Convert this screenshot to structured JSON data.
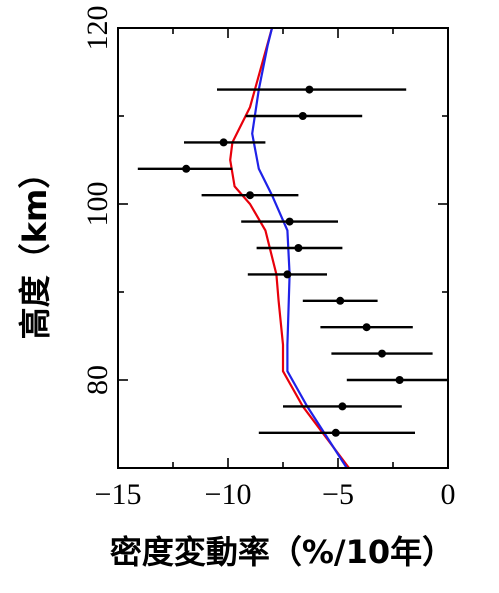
{
  "chart_data": {
    "type": "scatter",
    "xlabel": "密度変動率（%/10年）",
    "ylabel": "高度（km）",
    "xlim": [
      -15,
      0
    ],
    "ylim": [
      70,
      120
    ],
    "xticks": [
      -15,
      -10,
      -5,
      0
    ],
    "xtick_labels": [
      "−15",
      "−10",
      "−5",
      "0"
    ],
    "yticks": [
      80,
      100,
      120
    ],
    "ytick_labels": [
      "80",
      "100",
      "120"
    ],
    "grid": false,
    "points": [
      {
        "y": 113,
        "x": -6.3,
        "xmin": -10.5,
        "xmax": -1.9
      },
      {
        "y": 110,
        "x": -6.6,
        "xmin": -9.2,
        "xmax": -3.9
      },
      {
        "y": 107,
        "x": -10.2,
        "xmin": -12.0,
        "xmax": -8.3
      },
      {
        "y": 104,
        "x": -11.9,
        "xmin": -14.1,
        "xmax": -9.8
      },
      {
        "y": 101,
        "x": -9.0,
        "xmin": -11.2,
        "xmax": -6.8
      },
      {
        "y": 98,
        "x": -7.2,
        "xmin": -9.4,
        "xmax": -5.0
      },
      {
        "y": 95,
        "x": -6.8,
        "xmin": -8.7,
        "xmax": -4.8
      },
      {
        "y": 92,
        "x": -7.3,
        "xmin": -9.1,
        "xmax": -5.5
      },
      {
        "y": 89,
        "x": -4.9,
        "xmin": -6.6,
        "xmax": -3.2
      },
      {
        "y": 86,
        "x": -3.7,
        "xmin": -5.8,
        "xmax": -1.6
      },
      {
        "y": 83,
        "x": -3.0,
        "xmin": -5.3,
        "xmax": -0.7
      },
      {
        "y": 80,
        "x": -2.2,
        "xmin": -4.6,
        "xmax": 0.0
      },
      {
        "y": 77,
        "x": -4.8,
        "xmin": -7.5,
        "xmax": -2.1
      },
      {
        "y": 74,
        "x": -5.1,
        "xmin": -8.6,
        "xmax": -1.5
      }
    ],
    "series": [
      {
        "color": "#e8000b",
        "points": [
          [
            -4.5,
            70
          ],
          [
            -6.6,
            77
          ],
          [
            -7.5,
            81
          ],
          [
            -7.5,
            84
          ],
          [
            -7.7,
            89
          ],
          [
            -7.8,
            92
          ],
          [
            -8.3,
            97
          ],
          [
            -9.0,
            100
          ],
          [
            -9.7,
            102
          ],
          [
            -9.9,
            105
          ],
          [
            -9.8,
            107
          ],
          [
            -9.0,
            111
          ],
          [
            -8.0,
            120
          ]
        ]
      },
      {
        "color": "#1f22e8",
        "points": [
          [
            -4.6,
            70
          ],
          [
            -6.4,
            77
          ],
          [
            -7.3,
            81
          ],
          [
            -7.3,
            84
          ],
          [
            -7.2,
            92
          ],
          [
            -7.3,
            97
          ],
          [
            -8.0,
            101
          ],
          [
            -8.6,
            104
          ],
          [
            -8.9,
            108
          ],
          [
            -8.6,
            113
          ],
          [
            -8.2,
            118
          ],
          [
            -8.0,
            120
          ]
        ]
      }
    ]
  }
}
